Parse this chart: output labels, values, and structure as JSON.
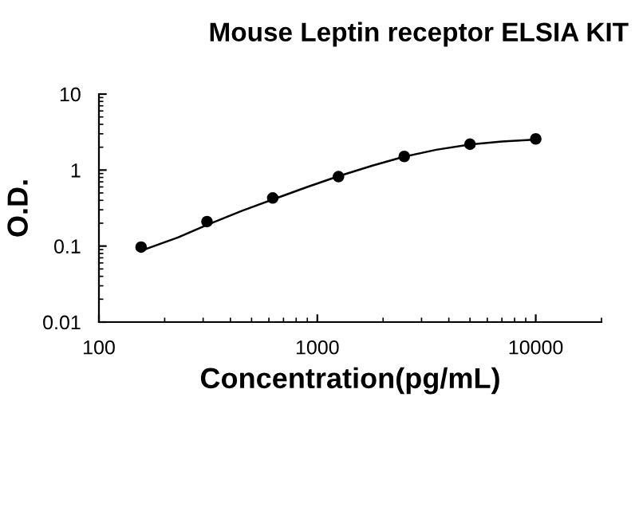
{
  "chart_data": {
    "type": "scatter",
    "title": "Mouse Leptin receptor ELSIA KIT",
    "xlabel": "Concentration(pg/mL)",
    "ylabel": "O.D.",
    "log": "xy",
    "grid": false,
    "marker": "circle",
    "xlim": [
      100,
      20000
    ],
    "xticks": [
      100,
      1000,
      10000
    ],
    "ylim": [
      0.01,
      10
    ],
    "yticks": [
      0.01,
      0.1,
      1,
      10
    ],
    "series": [
      {
        "color": "#000000",
        "x": [
          156,
          312.5,
          625,
          1250,
          2500,
          5000,
          10000
        ],
        "values": [
          0.097,
          0.21,
          0.43,
          0.82,
          1.51,
          2.19,
          2.57
        ]
      },
      {
        "type": "line",
        "color": "#000000",
        "marker": "none",
        "x": [
          160,
          230,
          312.5,
          450,
          625,
          900,
          1250,
          1800,
          2500,
          3500,
          5000,
          7000,
          10000
        ],
        "values": [
          0.089,
          0.13,
          0.19,
          0.29,
          0.41,
          0.6,
          0.83,
          1.15,
          1.5,
          1.85,
          2.17,
          2.38,
          2.52
        ]
      }
    ]
  }
}
